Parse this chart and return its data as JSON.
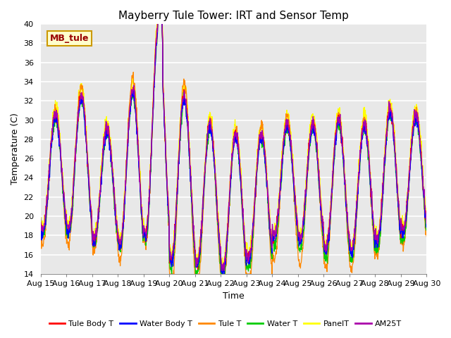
{
  "title": "Mayberry Tule Tower: IRT and Sensor Temp",
  "xlabel": "Time",
  "ylabel": "Temperature (C)",
  "ylim": [
    14,
    40
  ],
  "yticks": [
    14,
    16,
    18,
    20,
    22,
    24,
    26,
    28,
    30,
    32,
    34,
    36,
    38,
    40
  ],
  "x_tick_labels": [
    "Aug 15",
    "Aug 16",
    "Aug 17",
    "Aug 18",
    "Aug 19",
    "Aug 20",
    "Aug 21",
    "Aug 22",
    "Aug 23",
    "Aug 24",
    "Aug 25",
    "Aug 26",
    "Aug 27",
    "Aug 28",
    "Aug 29",
    "Aug 30"
  ],
  "series_colors": {
    "Tule Body T": "#ff0000",
    "Water Body T": "#0000ff",
    "Tule T": "#ff8800",
    "Water T": "#00cc00",
    "PanelT": "#ffff00",
    "AM25T": "#aa00aa"
  },
  "legend_label": "MB_tule",
  "legend_box_color": "#ffffcc",
  "legend_box_edge": "#cc9900",
  "background_color": "#e8e8e8",
  "grid_color": "#ffffff",
  "title_fontsize": 11,
  "axis_fontsize": 9,
  "tick_fontsize": 8
}
